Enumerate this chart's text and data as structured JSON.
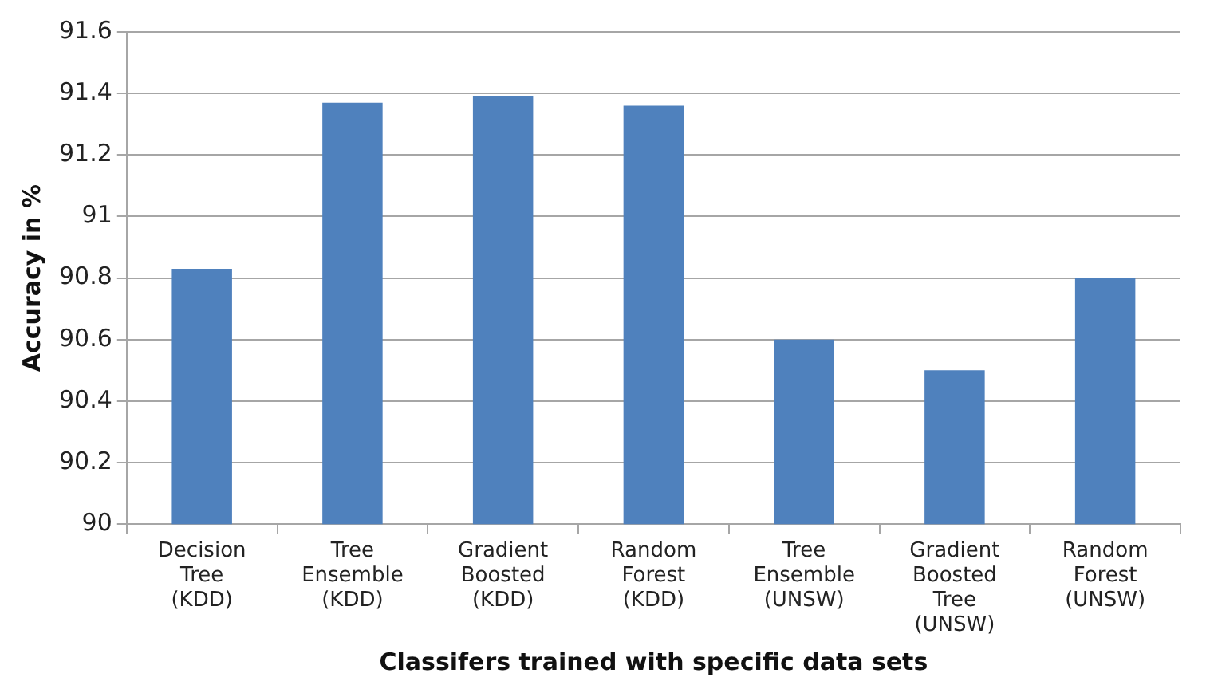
{
  "chart_data": {
    "type": "bar",
    "xlabel": "Classifers trained with specific data sets",
    "ylabel": "Accuracy in %",
    "categories": [
      "Decision Tree (KDD)",
      "Tree Ensemble (KDD)",
      "Gradient Boosted (KDD)",
      "Random Forest (KDD)",
      "Tree Ensemble (UNSW)",
      "Gradient Boosted Tree (UNSW)",
      "Random Forest (UNSW)"
    ],
    "values": [
      90.83,
      91.37,
      91.39,
      91.36,
      90.6,
      90.5,
      90.8
    ],
    "color": "#4f81bd",
    "ylim": [
      90,
      91.6
    ],
    "yticks": [
      90,
      90.2,
      90.4,
      90.6,
      90.8,
      91,
      91.2,
      91.4,
      91.6
    ],
    "grid": "y",
    "legend": false
  }
}
